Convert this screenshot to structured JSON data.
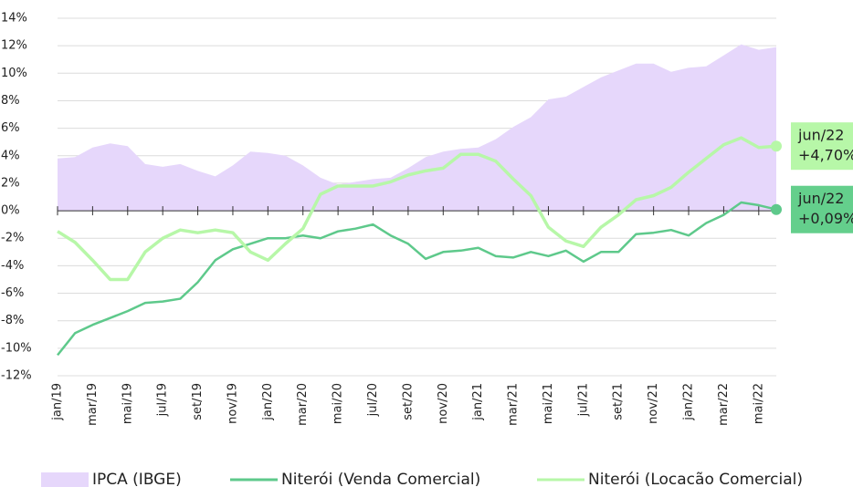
{
  "chart_data": {
    "type": "area-line",
    "categories": [
      "jan/19",
      null,
      "mar/19",
      null,
      "mai/19",
      null,
      "jul/19",
      null,
      "set/19",
      null,
      "nov/19",
      null,
      "jan/20",
      null,
      "mar/20",
      null,
      "mai/20",
      null,
      "jul/20",
      null,
      "set/20",
      null,
      "nov/20",
      null,
      "jan/21",
      null,
      "mar/21",
      null,
      "mai/21",
      null,
      "jul/21",
      null,
      "set/21",
      null,
      "nov/21",
      null,
      "jan/22",
      null,
      "mar/22",
      null,
      "mai/22",
      null
    ],
    "ylim": [
      -12,
      14
    ],
    "yticks": [
      {
        "value": -12,
        "label": "-12%"
      },
      {
        "value": -10,
        "label": "-10%"
      },
      {
        "value": -8,
        "label": "-8%"
      },
      {
        "value": -6,
        "label": "-6%"
      },
      {
        "value": -4,
        "label": "-4%"
      },
      {
        "value": -2,
        "label": "-2%"
      },
      {
        "value": 0,
        "label": "0%"
      },
      {
        "value": 2,
        "label": "2%"
      },
      {
        "value": 4,
        "label": "4%"
      },
      {
        "value": 6,
        "label": "6%"
      },
      {
        "value": 8,
        "label": "8%"
      },
      {
        "value": 10,
        "label": "10%"
      },
      {
        "value": 12,
        "label": "12%"
      },
      {
        "value": 14,
        "label": "14%"
      }
    ],
    "grid": true,
    "series": [
      {
        "name": "IPCA (IBGE)",
        "kind": "area",
        "color": "#e6d7fb",
        "values": [
          3.8,
          3.9,
          4.6,
          4.9,
          4.7,
          3.4,
          3.2,
          3.4,
          2.9,
          2.5,
          3.3,
          4.3,
          4.2,
          4.0,
          3.3,
          2.4,
          1.9,
          2.1,
          2.3,
          2.4,
          3.1,
          3.9,
          4.3,
          4.5,
          4.6,
          5.2,
          6.1,
          6.8,
          8.1,
          8.3,
          9.0,
          9.7,
          10.2,
          10.7,
          10.7,
          10.1,
          10.4,
          10.5,
          11.3,
          12.1,
          11.7,
          11.9
        ]
      },
      {
        "name": "Niterói (Venda Comercial)",
        "kind": "line",
        "color": "#5ec98b",
        "label_color": "#64cf8c",
        "end_label": [
          "jun/22",
          "+0,09%"
        ],
        "values": [
          -10.5,
          -8.9,
          -8.3,
          -7.8,
          -7.3,
          -6.7,
          -6.6,
          -6.4,
          -5.2,
          -3.6,
          -2.8,
          -2.4,
          -2.0,
          -2.0,
          -1.8,
          -2.0,
          -1.5,
          -1.3,
          -1.0,
          -1.8,
          -2.4,
          -3.5,
          -3.0,
          -2.9,
          -2.7,
          -3.3,
          -3.4,
          -3.0,
          -3.3,
          -2.9,
          -3.7,
          -3.0,
          -3.0,
          -1.7,
          -1.6,
          -1.4,
          -1.8,
          -0.9,
          -0.3,
          0.6,
          0.4,
          0.09
        ]
      },
      {
        "name": "Niterói (Locacão Comercial)",
        "kind": "line",
        "color": "#b7f7a8",
        "label_color": "#b7f7a8",
        "end_label": [
          "jun/22",
          "+4,70%"
        ],
        "values": [
          -1.5,
          -2.3,
          -3.6,
          -5.0,
          -5.0,
          -3.0,
          -2.0,
          -1.4,
          -1.6,
          -1.4,
          -1.6,
          -3.0,
          -3.6,
          -2.4,
          -1.3,
          1.2,
          1.8,
          1.8,
          1.8,
          2.1,
          2.6,
          2.9,
          3.1,
          4.1,
          4.1,
          3.6,
          2.3,
          1.1,
          -1.2,
          -2.2,
          -2.6,
          -1.2,
          -0.3,
          0.8,
          1.1,
          1.7,
          2.8,
          3.8,
          4.8,
          5.3,
          4.6,
          4.7
        ]
      }
    ]
  }
}
